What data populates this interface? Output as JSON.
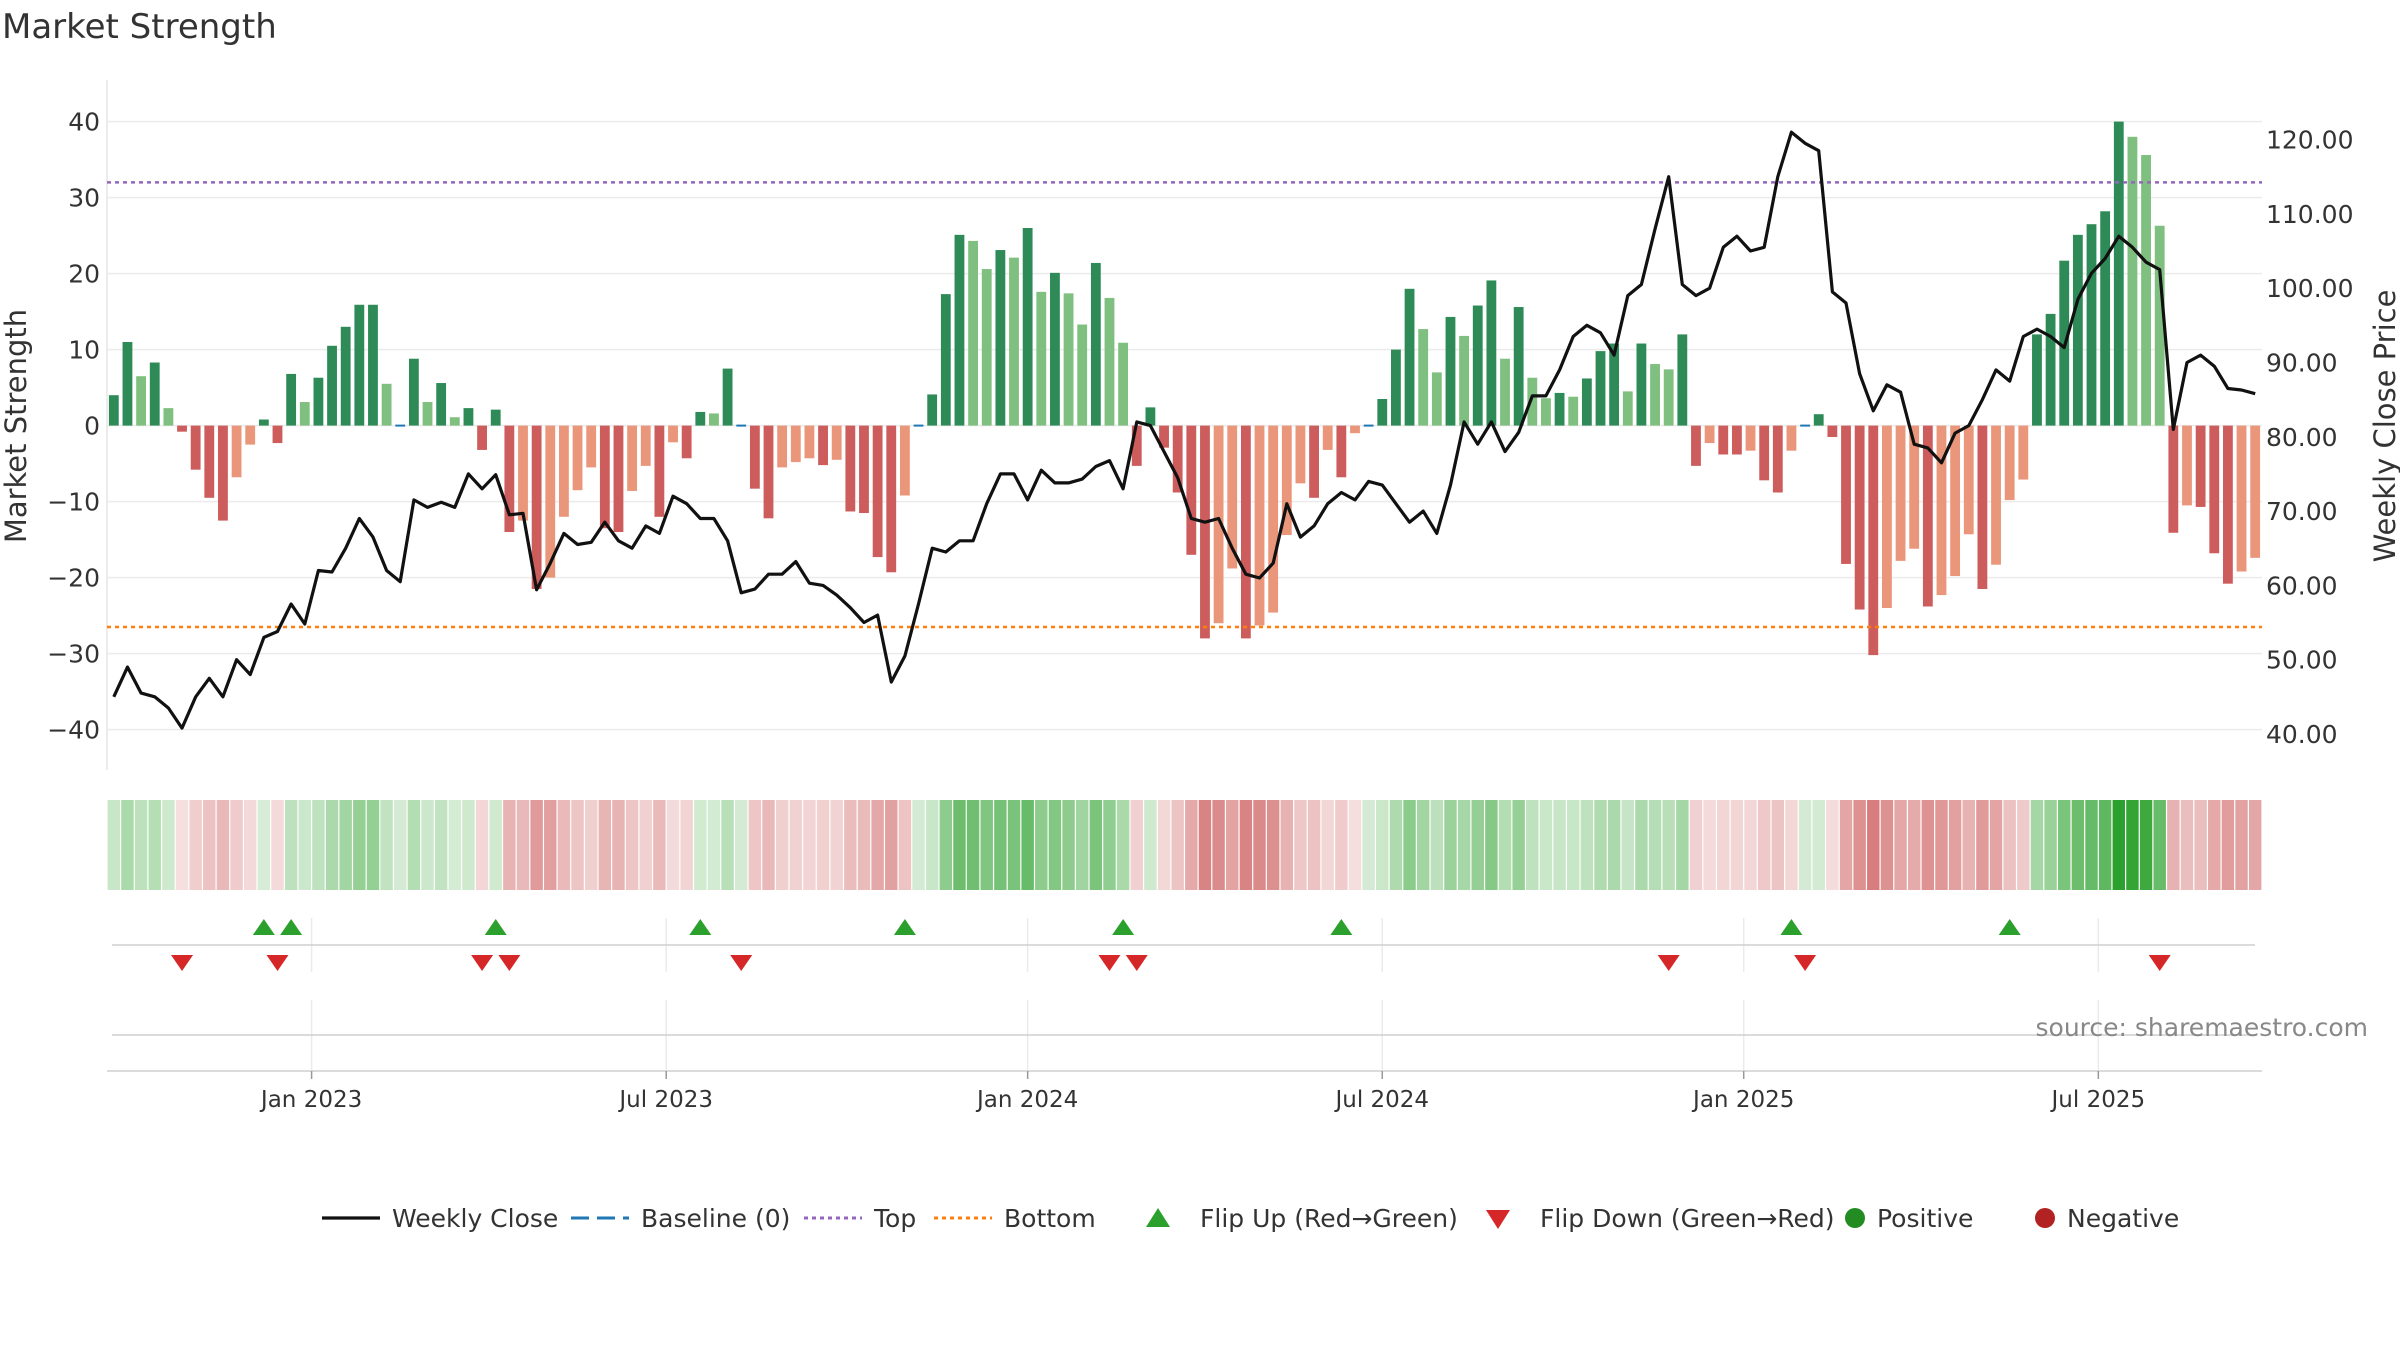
{
  "chart_data": {
    "type": "bar",
    "title": "Market Strength",
    "ylabel": "Market Strength",
    "y2label": "Weekly Close Price",
    "ylim": [
      -44,
      43.5
    ],
    "y_ticks": [
      40,
      30,
      20,
      10,
      0,
      -10,
      -20,
      -30,
      -40
    ],
    "y_tick_labels": [
      "40",
      "30",
      "20",
      "10",
      "0",
      "−10",
      "−20",
      "−30",
      "−40"
    ],
    "y2lim": [
      36.5,
      126
    ],
    "y2_ticks": [
      "120.00",
      "110.00",
      "100.00",
      "90.00",
      "80.00",
      "70.00",
      "60.00",
      "50.00",
      "40.00"
    ],
    "x_ticks": [
      {
        "label": "Jan 2023",
        "week": 15
      },
      {
        "label": "Jul 2023",
        "week": 41
      },
      {
        "label": "Jan 2024",
        "week": 67.5
      },
      {
        "label": "Jul 2024",
        "week": 93.5
      },
      {
        "label": "Jan 2025",
        "week": 120
      },
      {
        "label": "Jul 2025",
        "week": 146
      }
    ],
    "top_line": 32,
    "bottom_line": -26.5,
    "grid": true,
    "strength_weekly": [
      4,
      11,
      6.5,
      8.3,
      2.3,
      -0.8,
      -5.8,
      -9.5,
      -12.5,
      -6.8,
      -2.5,
      0.8,
      -2.3,
      6.8,
      3.1,
      6.3,
      10.5,
      13,
      15.9,
      15.9,
      5.5,
      0,
      8.8,
      3.1,
      5.6,
      1.1,
      2.3,
      -3.2,
      2.1,
      -14,
      -12.5,
      -21.5,
      -20,
      -12,
      -8.5,
      -5.5,
      -13.5,
      -14,
      -8.6,
      -5.3,
      -12,
      -2.2,
      -4.3,
      1.8,
      1.6,
      7.5,
      0,
      -8.3,
      -12.2,
      -5.5,
      -4.8,
      -4.3,
      -5.2,
      -4.5,
      -11.3,
      -11.5,
      -17.3,
      -19.3,
      -9.2,
      0,
      4.1,
      17.3,
      25.1,
      24.3,
      20.6,
      23.1,
      22.1,
      26,
      17.6,
      20.1,
      17.4,
      13.3,
      21.4,
      16.8,
      10.9,
      -5.3,
      2.4,
      -2.9,
      -8.8,
      -17,
      -28,
      -26,
      -18.8,
      -28,
      -26.3,
      -24.6,
      -14.4,
      -7.6,
      -9.5,
      -3.2,
      -6.8,
      -1,
      0,
      3.5,
      10,
      18,
      12.7,
      7,
      14.3,
      11.8,
      15.8,
      19.1,
      8.8,
      15.6,
      6.3,
      3.6,
      4.3,
      3.8,
      6.2,
      9.8,
      10.8,
      4.5,
      10.8,
      8.1,
      7.4,
      12,
      -5.3,
      -2.3,
      -3.8,
      -3.8,
      -3.3,
      -7.2,
      -8.8,
      -3.3,
      0,
      1.5,
      -1.5,
      -18.2,
      -24.2,
      -30.2,
      -24,
      -17.8,
      -16.2,
      -23.8,
      -22.3,
      -19.8,
      -14.3,
      -21.5,
      -18.3,
      -9.8,
      -7.1,
      12,
      14.7,
      21.7,
      25.1,
      26.5,
      28.2,
      40,
      38,
      35.6,
      26.3,
      -14.1,
      -10.5,
      -10.7,
      -16.8,
      -20.8,
      -19.2,
      -17.4
    ],
    "weekly_close_series": [
      45,
      49,
      45.5,
      45,
      43.5,
      40.8,
      45,
      47.5,
      45,
      50,
      48,
      53,
      53.8,
      57.5,
      54.8,
      62,
      61.8,
      65,
      69,
      66.5,
      62,
      60.5,
      71.5,
      70.5,
      71.2,
      70.5,
      75,
      73,
      74.9,
      69.5,
      69.7,
      59.4,
      63,
      67,
      65.5,
      65.8,
      68.5,
      66,
      65,
      68,
      67,
      72,
      71,
      69,
      69,
      66,
      59,
      59.5,
      61.5,
      61.5,
      63.2,
      60.3,
      60,
      58.7,
      57,
      55,
      56,
      47,
      50.5,
      57.5,
      65,
      64.5,
      66,
      66,
      71,
      75,
      75,
      71.5,
      75.5,
      73.8,
      73.8,
      74.3,
      76,
      76.8,
      73,
      82,
      81.5,
      78,
      74.5,
      69,
      68.5,
      69,
      65,
      61.5,
      61,
      63,
      71,
      66.5,
      68,
      71,
      72.5,
      71.5,
      74,
      73.5,
      71,
      68.5,
      70,
      67,
      73.5,
      82,
      79,
      82,
      78,
      80.6,
      85.5,
      85.5,
      89,
      93.5,
      95,
      94,
      91,
      99,
      100.5,
      108,
      115,
      100.5,
      99,
      100,
      105.5,
      107,
      105,
      105.5,
      115,
      121,
      119.5,
      118.5,
      99.5,
      98,
      88.5,
      83.5,
      87,
      86,
      79,
      78.5,
      76.5,
      80.5,
      81.5,
      85,
      89,
      87.5,
      93.5,
      94.5,
      93.5,
      92,
      98.5,
      102,
      104,
      107,
      105.5,
      103.5,
      102.5,
      81,
      90,
      91,
      89.5,
      86.5,
      86.3,
      85.8
    ],
    "heat_strip_weekly": [
      4,
      11,
      6.5,
      8.3,
      2.3,
      -0.8,
      -5.8,
      -9.5,
      -12.5,
      -6.8,
      -2.5,
      0.8,
      -2.3,
      6.8,
      3.1,
      6.3,
      10.5,
      13,
      15.9,
      15.9,
      5.5,
      0,
      8.8,
      3.1,
      5.6,
      1.1,
      2.3,
      -3.2,
      2.1,
      -14,
      -12.5,
      -21.5,
      -20,
      -12,
      -8.5,
      -5.5,
      -13.5,
      -14,
      -8.6,
      -5.3,
      -12,
      -2.2,
      -4.3,
      1.8,
      1.6,
      7.5,
      0,
      -8.3,
      -12.2,
      -5.5,
      -4.8,
      -4.3,
      -5.2,
      -4.5,
      -11.3,
      -11.5,
      -17.3,
      -19.3,
      -9.2,
      0,
      4.1,
      17.3,
      25.1,
      24.3,
      20.6,
      23.1,
      22.1,
      26,
      17.6,
      20.1,
      17.4,
      13.3,
      21.4,
      16.8,
      10.9,
      -5.3,
      2.4,
      -2.9,
      -8.8,
      -17,
      -28,
      -26,
      -18.8,
      -28,
      -26.3,
      -24.6,
      -14.4,
      -7.6,
      -9.5,
      -3.2,
      -6.8,
      -1,
      0,
      3.5,
      10,
      18,
      12.7,
      7,
      14.3,
      11.8,
      15.8,
      19.1,
      8.8,
      15.6,
      6.3,
      3.6,
      4.3,
      3.8,
      6.2,
      9.8,
      10.8,
      4.5,
      10.8,
      8.1,
      7.4,
      12,
      -5.3,
      -2.3,
      -3.8,
      -3.8,
      -3.3,
      -7.2,
      -8.8,
      -3.3,
      0,
      1.5,
      -1.5,
      -18.2,
      -24.2,
      -30.2,
      -24,
      -17.8,
      -16.2,
      -23.8,
      -22.3,
      -19.8,
      -14.3,
      -21.5,
      -18.3,
      -9.8,
      -7.1,
      12,
      14.7,
      21.7,
      25.1,
      26.5,
      28.2,
      40,
      38,
      35.6,
      26.3,
      -14.1,
      -10.5,
      -10.7,
      -16.8,
      -20.8,
      -19.2,
      -17.4
    ],
    "flip_up_weeks": [
      11,
      13,
      28,
      43,
      58,
      74,
      90,
      123,
      139
    ],
    "flip_down_weeks": [
      5,
      12,
      27,
      29,
      46,
      73,
      75,
      114,
      124,
      150
    ],
    "source": "source: sharemaestro.com",
    "legend": [
      {
        "key": "weekly_close",
        "label": "Weekly Close"
      },
      {
        "key": "baseline",
        "label": "Baseline (0)"
      },
      {
        "key": "top",
        "label": "Top"
      },
      {
        "key": "bottom",
        "label": "Bottom"
      },
      {
        "key": "flip_up",
        "label": "Flip Up (Red→Green)"
      },
      {
        "key": "flip_down",
        "label": "Flip Down (Green→Red)"
      },
      {
        "key": "positive",
        "label": "Positive"
      },
      {
        "key": "negative",
        "label": "Negative"
      }
    ],
    "legend_position": "bottom-center",
    "colors": {
      "pos_dark": "#2e8b57",
      "pos_light": "#7fbf7f",
      "neg_dark": "#cd5c5c",
      "neg_light": "#e9967a",
      "line": "#111111",
      "baseline": "#1f77b4",
      "top": "#9467bd",
      "bottom": "#ff7f0e",
      "flip_up": "#2ca02c",
      "flip_down": "#d62728",
      "positive_dot": "#228b22",
      "negative_dot": "#b22222"
    }
  }
}
